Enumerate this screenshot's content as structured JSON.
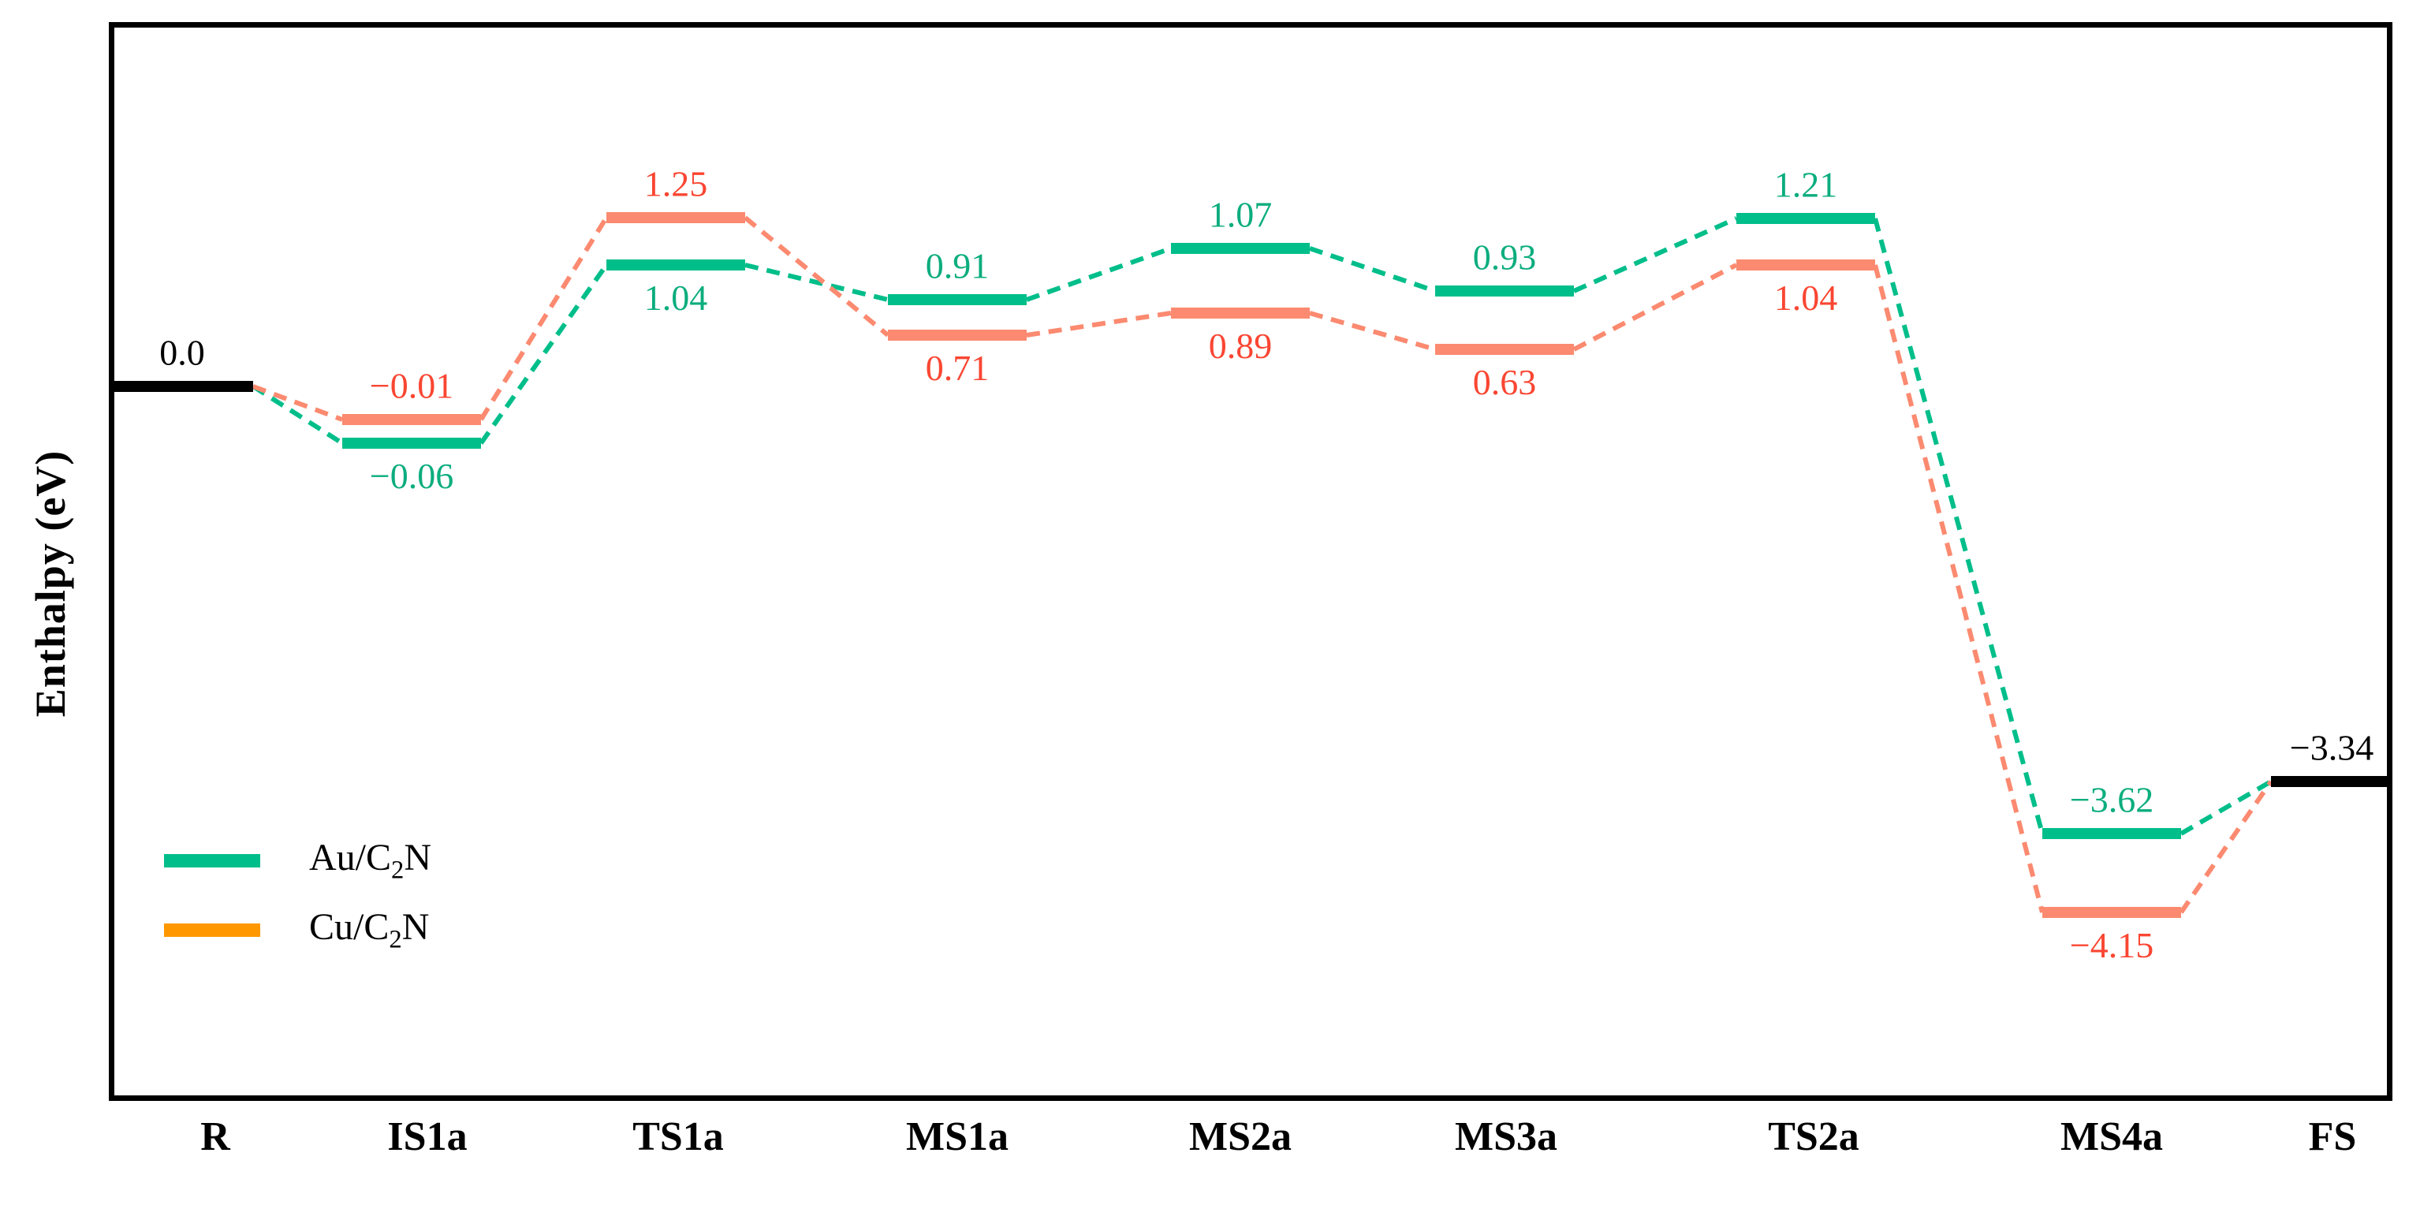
{
  "chart_data": {
    "type": "line",
    "subtype": "reaction-energy-profile",
    "title": "",
    "xlabel": "",
    "ylabel": "Enthalpy (eV)",
    "units": "eV",
    "categories": [
      "R",
      "IS1a",
      "TS1a",
      "MS1a",
      "MS2a",
      "MS3a",
      "TS2a",
      "MS4a",
      "FS"
    ],
    "grid": false,
    "axis_ticks": "none",
    "legend_position": "lower-left",
    "series": [
      {
        "id": "au",
        "name": "Au/C2N",
        "line_color": "#00BE8A",
        "label_color": "#0CAD7E",
        "line_style": "dashed-connectors-solid-levels",
        "values": [
          0.0,
          -0.06,
          1.04,
          0.91,
          1.07,
          0.93,
          1.21,
          -3.62,
          -3.34
        ],
        "value_labels": [
          "0.0",
          "−0.06",
          "1.04",
          "0.91",
          "1.07",
          "0.93",
          "1.21",
          "−3.62",
          "−3.34"
        ]
      },
      {
        "id": "cu",
        "name": "Cu/C2N",
        "line_color": "#FB8A70",
        "label_color": "#FA4632",
        "line_style": "dashed-connectors-solid-levels",
        "values": [
          0.0,
          -0.01,
          1.25,
          0.71,
          0.89,
          0.63,
          1.04,
          -4.15,
          -3.34
        ],
        "value_labels": [
          "0.0",
          "−0.01",
          "1.25",
          "0.71",
          "0.89",
          "0.63",
          "1.04",
          "−4.15",
          "−3.34"
        ]
      }
    ],
    "shared_levels": [
      {
        "index": 0,
        "category": "R",
        "value": 0.0,
        "label": "0.0",
        "color": "#000000"
      },
      {
        "index": 8,
        "category": "FS",
        "value": -3.34,
        "label": "−3.34",
        "color": "#000000"
      }
    ]
  },
  "legend": {
    "items": [
      {
        "id": "au",
        "prefix": "Au/C",
        "sub": "2",
        "suffix": "N",
        "color": "#00BE8A"
      },
      {
        "id": "cu",
        "prefix": "Cu/C",
        "sub": "2",
        "suffix": "N",
        "color": "#FF9800"
      }
    ]
  }
}
